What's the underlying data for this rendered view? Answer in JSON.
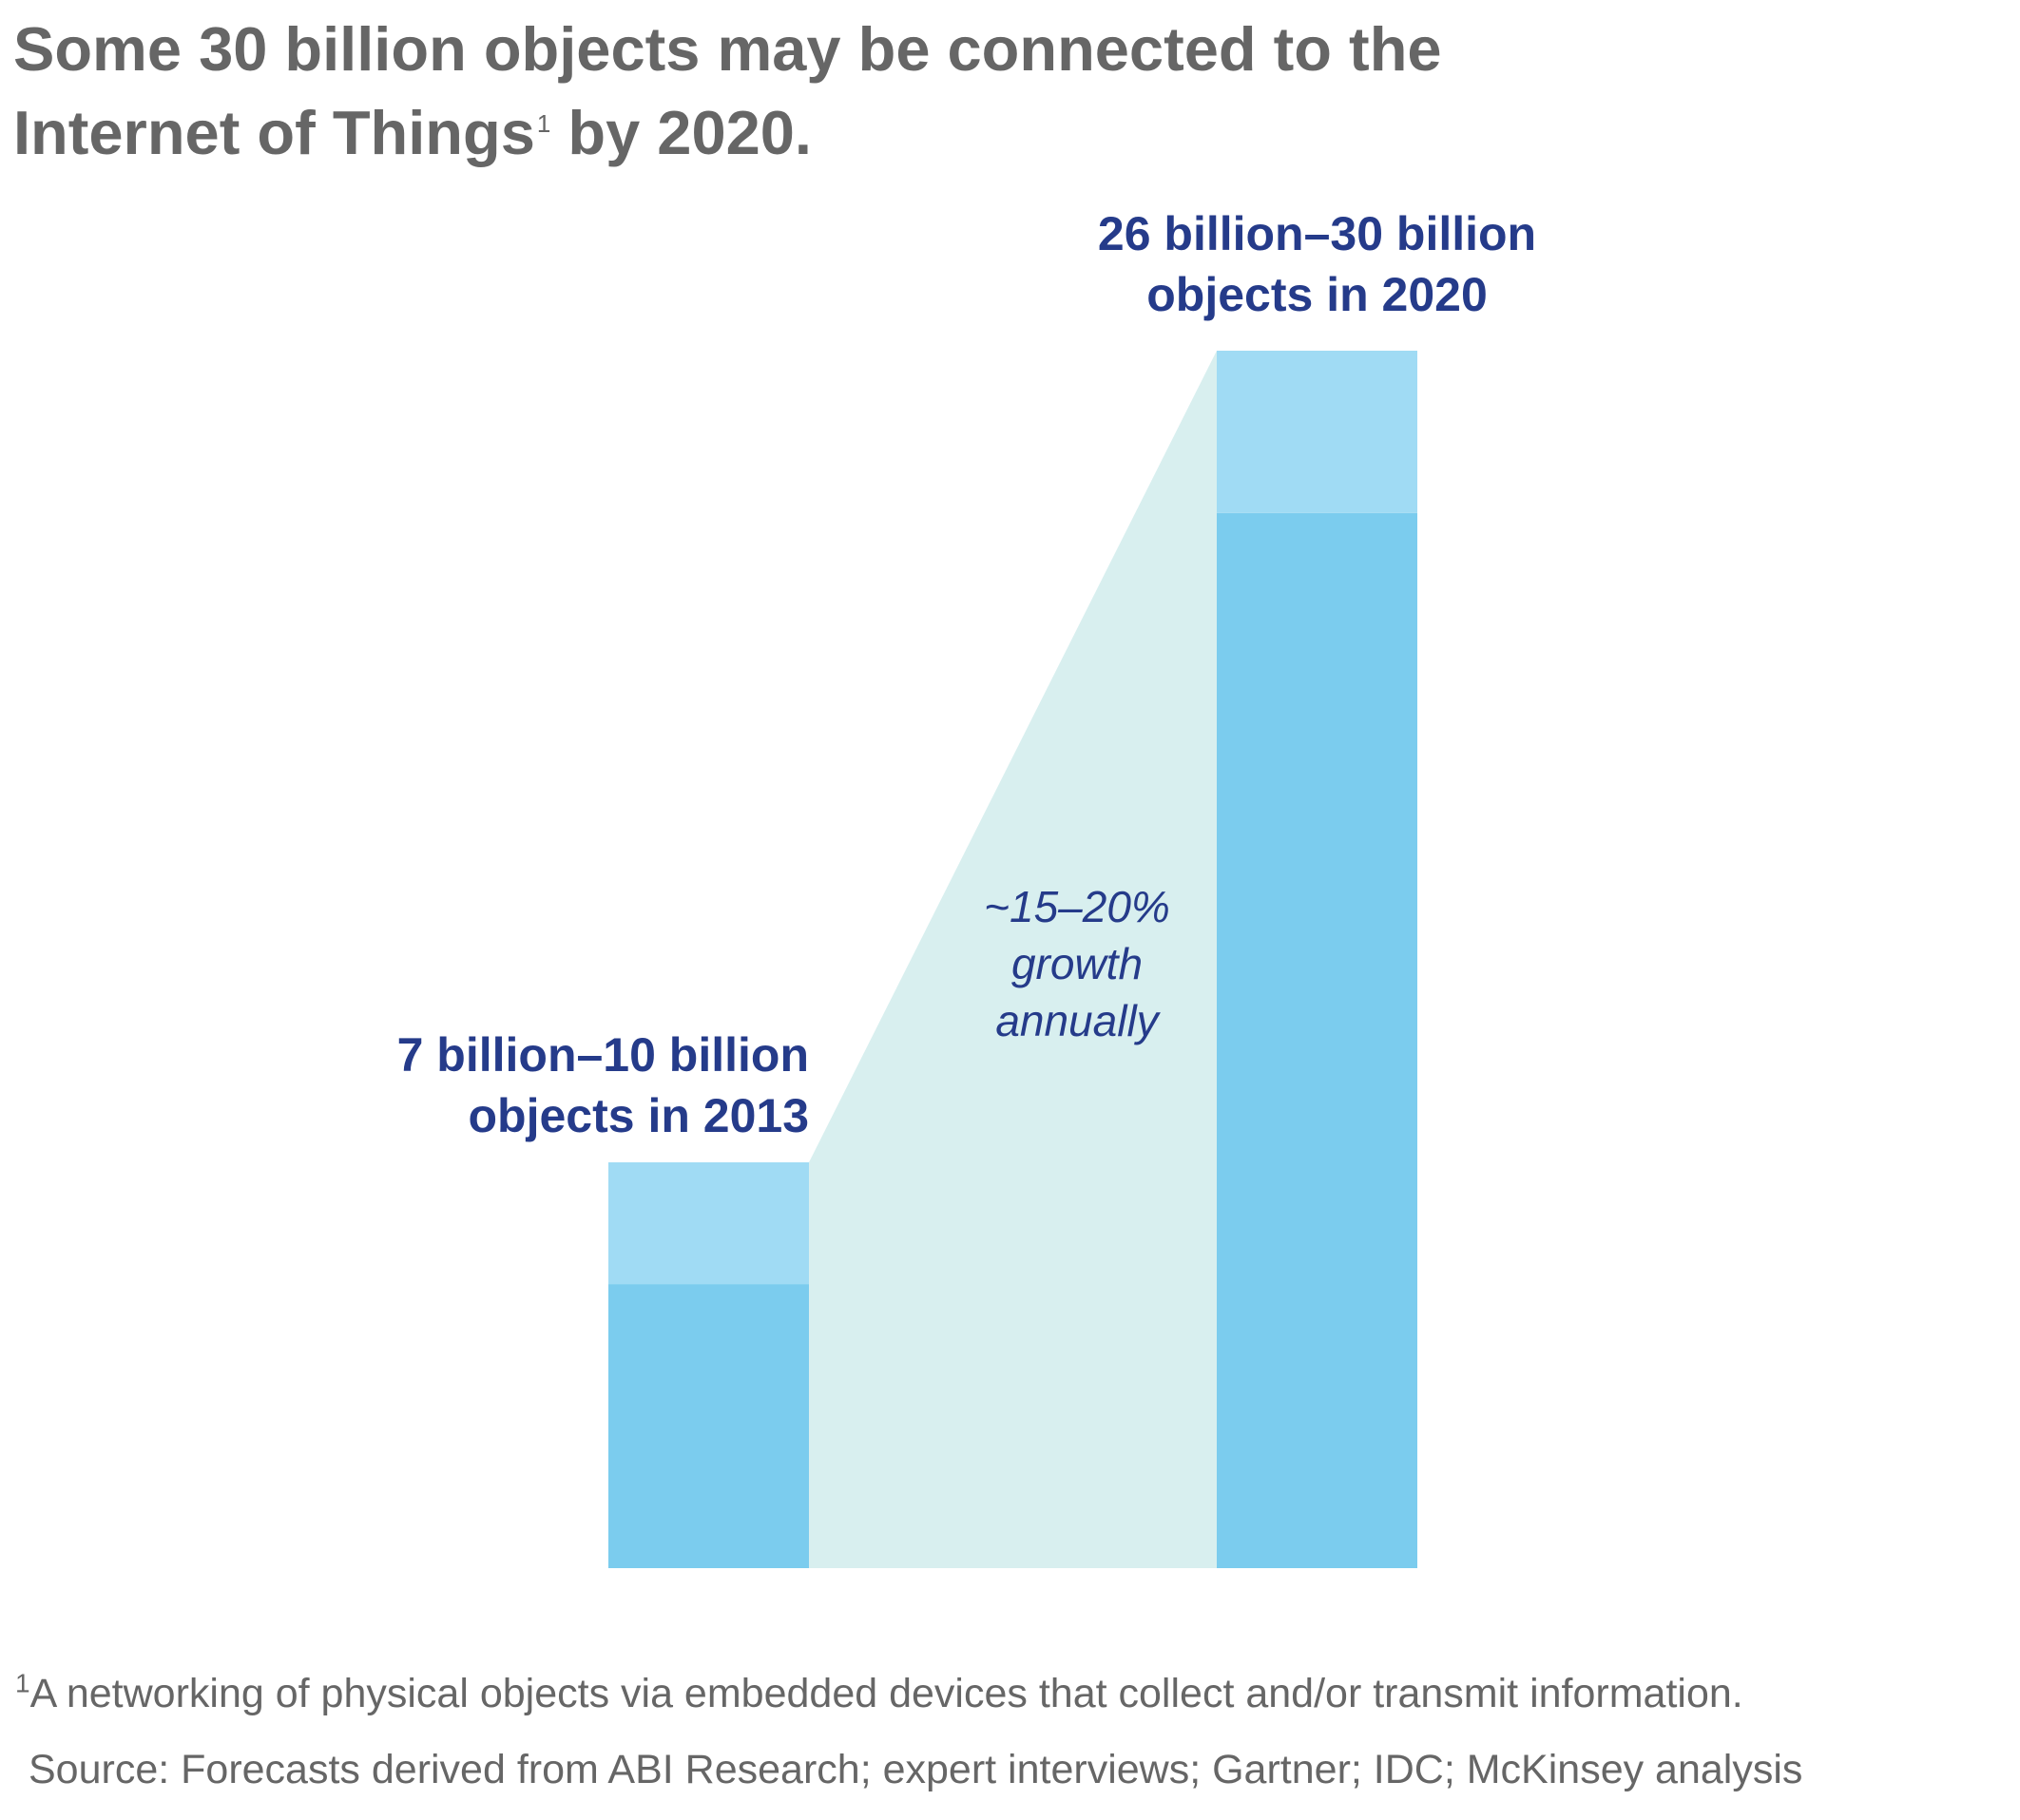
{
  "title": {
    "line1": "Some 30 billion objects may be connected to the",
    "line2_before": "Internet of Things",
    "footnote_marker": "1",
    "line2_after": " by 2020."
  },
  "chart_data": {
    "type": "bar",
    "categories": [
      "2013",
      "2020"
    ],
    "series": [
      {
        "name": "",
        "low": [
          7,
          26
        ],
        "high": [
          10,
          30
        ]
      }
    ],
    "units": "billion objects",
    "labels": [
      {
        "line1": "7 billion–10 billion",
        "line2": "objects in 2013"
      },
      {
        "line1": "26 billion–30 billion",
        "line2": "objects in 2020"
      }
    ],
    "annotation": [
      "~15–20%",
      "growth",
      "annually"
    ],
    "grid": false,
    "ylim": [
      0,
      30
    ]
  },
  "colors": {
    "bar_low": "#7bccee",
    "bar_range": "#a0dbf4",
    "growth_band": "#d8efef",
    "label_text": "#253b8a",
    "title_text": "#666666"
  },
  "footnote": {
    "marker": "1",
    "text": "A networking of physical objects via embedded devices that collect and/or transmit information."
  },
  "source": "Source: Forecasts derived from ABI Research; expert interviews; Gartner; IDC; McKinsey analysis"
}
